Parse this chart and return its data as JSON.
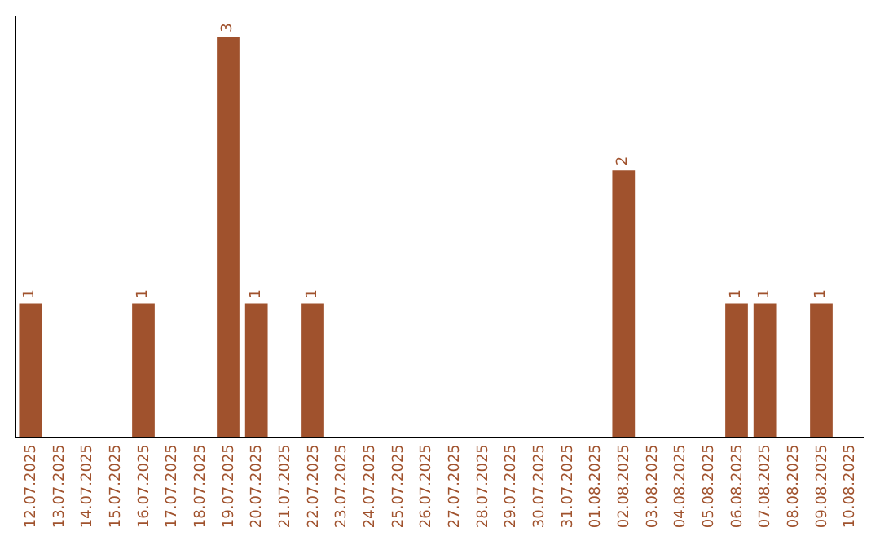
{
  "chart_data": {
    "type": "bar",
    "categories": [
      "12.07.2025",
      "13.07.2025",
      "14.07.2025",
      "15.07.2025",
      "16.07.2025",
      "17.07.2025",
      "18.07.2025",
      "19.07.2025",
      "20.07.2025",
      "21.07.2025",
      "22.07.2025",
      "23.07.2025",
      "24.07.2025",
      "25.07.2025",
      "26.07.2025",
      "27.07.2025",
      "28.07.2025",
      "29.07.2025",
      "30.07.2025",
      "31.07.2025",
      "01.08.2025",
      "02.08.2025",
      "03.08.2025",
      "04.08.2025",
      "05.08.2025",
      "06.08.2025",
      "07.08.2025",
      "08.08.2025",
      "09.08.2025",
      "10.08.2025"
    ],
    "values": [
      1,
      0,
      0,
      0,
      1,
      0,
      0,
      3,
      1,
      0,
      1,
      0,
      0,
      0,
      0,
      0,
      0,
      0,
      0,
      0,
      0,
      2,
      0,
      0,
      0,
      1,
      1,
      0,
      1,
      0
    ],
    "value_labels": [
      "1",
      null,
      null,
      null,
      "1",
      null,
      null,
      "3",
      "1",
      null,
      "1",
      null,
      null,
      null,
      null,
      null,
      null,
      null,
      null,
      null,
      null,
      "2",
      null,
      null,
      null,
      "1",
      "1",
      null,
      "1",
      null
    ],
    "color": "#a0522d",
    "tick_labels": "x"
  }
}
